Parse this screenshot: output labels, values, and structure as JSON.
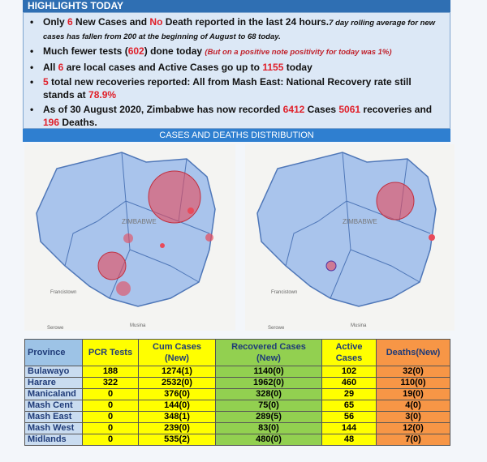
{
  "header": {
    "title": "HIGHLIGHTS TODAY"
  },
  "bullets": [
    [
      {
        "text": "Only ",
        "style": "plain"
      },
      {
        "text": "6",
        "style": "red"
      },
      {
        "text": " New Cases and ",
        "style": "plain"
      },
      {
        "text": "No",
        "style": "red"
      },
      {
        "text": " Death reported in the last 24 hours.",
        "style": "plain"
      },
      {
        "text": "7 day rolling average for new cases has fallen from 200 at the beginning of August to 68 today.",
        "style": "note"
      }
    ],
    [
      {
        "text": "Much fewer tests (",
        "style": "plain"
      },
      {
        "text": "602",
        "style": "red"
      },
      {
        "text": ") done today ",
        "style": "plain"
      },
      {
        "text": "(But on a positive note positivity for today was 1%)",
        "style": "note-red"
      }
    ],
    [
      {
        "text": "All ",
        "style": "plain"
      },
      {
        "text": "6",
        "style": "red"
      },
      {
        "text": " are local cases and Active Cases go up to ",
        "style": "plain"
      },
      {
        "text": "1155",
        "style": "red"
      },
      {
        "text": " today",
        "style": "plain"
      }
    ],
    [
      {
        "text": "5",
        "style": "red"
      },
      {
        "text": " total new recoveries reported: All from Mash East:  National Recovery rate still stands at ",
        "style": "plain"
      },
      {
        "text": "78.9%",
        "style": "red"
      }
    ],
    [
      {
        "text": "As of 30 August 2020, Zimbabwe has now recorded ",
        "style": "plain"
      },
      {
        "text": "6412",
        "style": "red"
      },
      {
        "text": " Cases ",
        "style": "plain"
      },
      {
        "text": "5061",
        "style": "red"
      },
      {
        "text": " recoveries and ",
        "style": "plain"
      },
      {
        "text": "196",
        "style": "red"
      },
      {
        "text": " Deaths.",
        "style": "plain"
      }
    ]
  ],
  "section": {
    "title": "CASES AND DEATHS DISTRIBUTION"
  },
  "maps": {
    "country": "ZIMBABWE",
    "labels": [
      "Francistown",
      "Musina",
      "Serowe"
    ]
  },
  "table": {
    "header": [
      "Province",
      "PCR Tests",
      "Cum Cases (New)",
      "Recovered Cases (New)",
      "Active Cases",
      "Deaths(New)"
    ],
    "rows": [
      [
        "Bulawayo",
        "188",
        "1274(1)",
        "1140(0)",
        "102",
        "32(0)"
      ],
      [
        "Harare",
        "322",
        "2532(0)",
        "1962(0)",
        "460",
        "110(0)"
      ],
      [
        "Manicaland",
        "0",
        "376(0)",
        "328(0)",
        "29",
        "19(0)"
      ],
      [
        "Mash Cent",
        "0",
        "144(0)",
        "75(0)",
        "65",
        "4(0)"
      ],
      [
        "Mash East",
        "0",
        "348(1)",
        "289(5)",
        "56",
        "3(0)"
      ],
      [
        "Mash West",
        "0",
        "239(0)",
        "83(0)",
        "144",
        "12(0)"
      ],
      [
        "Midlands",
        "0",
        "535(2)",
        "480(0)",
        "48",
        "7(0)"
      ]
    ]
  }
}
